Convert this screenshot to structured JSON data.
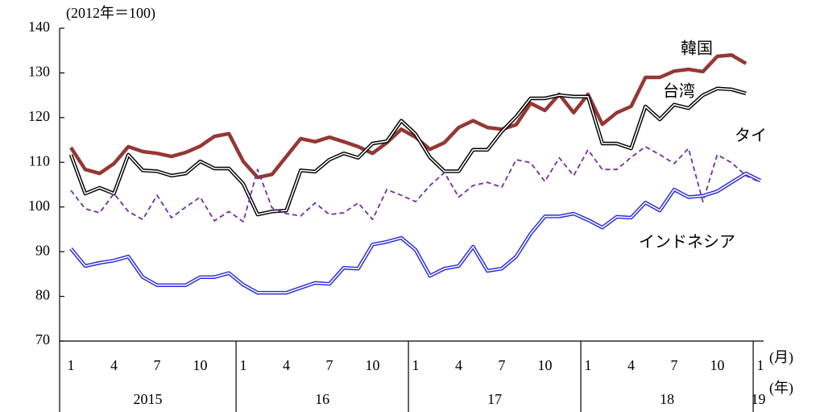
{
  "chart_data": {
    "type": "line",
    "y_unit_label": "(2012年＝100)",
    "x_month_unit": "(月)",
    "x_year_unit": "(年)",
    "categories": [
      "1",
      null,
      null,
      "4",
      null,
      null,
      "7",
      null,
      null,
      "10",
      null,
      null,
      "1",
      null,
      null,
      "4",
      null,
      null,
      "7",
      null,
      null,
      "10",
      null,
      null,
      "1",
      null,
      null,
      "4",
      null,
      null,
      "7",
      null,
      null,
      "10",
      null,
      null,
      "1",
      null,
      null,
      "4",
      null,
      null,
      "7",
      null,
      null,
      "10",
      null,
      null,
      "1"
    ],
    "years": [
      "2015",
      "16",
      "17",
      "18",
      "19"
    ],
    "ylim": [
      70,
      140
    ],
    "yticks": [
      70,
      80,
      90,
      100,
      110,
      120,
      130,
      140
    ],
    "series": [
      {
        "name": "韓国",
        "color": "#953735",
        "line_style": "thick",
        "values": [
          113.3,
          108.4,
          107.5,
          109.7,
          113.5,
          112.4,
          112,
          111.3,
          112.2,
          113.6,
          115.8,
          116.4,
          110.2,
          106.6,
          107.3,
          111.3,
          115.3,
          114.6,
          115.6,
          114.6,
          113.5,
          112,
          114.4,
          117.4,
          115.6,
          112.9,
          114.4,
          117.8,
          119.3,
          117.8,
          117.4,
          118.4,
          123.2,
          121.6,
          125.2,
          121.1,
          125.2,
          118.5,
          121.1,
          122.5,
          129,
          129,
          130.4,
          130.8,
          130.3,
          133.7,
          134,
          132.1,
          null
        ]
      },
      {
        "name": "台湾",
        "color": "#000000",
        "line_style": "double",
        "values": [
          111.7,
          103,
          104.3,
          103,
          111.7,
          108.2,
          108,
          107,
          107.5,
          110.2,
          108.6,
          108.6,
          105.2,
          98.3,
          99,
          99.2,
          108.2,
          107.9,
          110.6,
          112,
          111,
          114.2,
          114.7,
          119.3,
          116.3,
          111.1,
          108,
          108,
          112.8,
          112.8,
          116.9,
          120.2,
          124.3,
          124.3,
          125,
          124.7,
          124.7,
          114.2,
          114.2,
          113.1,
          122.5,
          119.6,
          122.9,
          122.1,
          125,
          126.5,
          126.3,
          125.4,
          null
        ]
      },
      {
        "name": "タイ",
        "color": "#7030a0",
        "line_style": "dashed",
        "values": [
          103.7,
          99.6,
          98.7,
          103,
          99,
          97.2,
          102.6,
          97.6,
          100,
          102.2,
          96.9,
          99,
          96.7,
          108.4,
          99.8,
          98.5,
          98,
          100.9,
          98.3,
          98.7,
          100.9,
          97.2,
          103.9,
          102.6,
          101.2,
          104.8,
          107.7,
          102.2,
          104.8,
          105.5,
          104.4,
          110.6,
          109.9,
          105.7,
          111,
          107,
          112.8,
          108.4,
          108.4,
          111.1,
          113.5,
          111.7,
          109.7,
          113.1,
          101.2,
          111.7,
          109.9,
          107,
          105.5
        ]
      },
      {
        "name": "インドネシア",
        "color": "#2a2ae0",
        "line_style": "double",
        "values": [
          90.7,
          86.8,
          87.5,
          88,
          88.9,
          84.3,
          82.5,
          82.5,
          82.5,
          84.3,
          84.3,
          85.2,
          82.6,
          80.8,
          80.8,
          80.8,
          81.9,
          83,
          82.8,
          86.4,
          86.2,
          91.6,
          92.2,
          93.1,
          90.4,
          84.6,
          86.2,
          86.8,
          91.1,
          85.7,
          86.2,
          88.9,
          94,
          97.9,
          97.9,
          98.5,
          97.1,
          95.4,
          97.8,
          97.6,
          101,
          99.2,
          103.9,
          102.2,
          102.5,
          103.5,
          105.5,
          107.5,
          105.9
        ]
      }
    ]
  }
}
